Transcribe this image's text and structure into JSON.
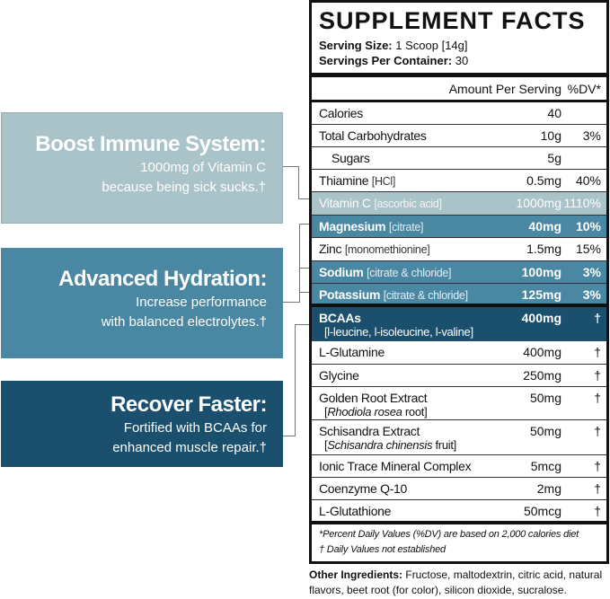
{
  "colors": {
    "light": "#a9c3c8",
    "mid": "#4a87a3",
    "dark": "#1b4f6e"
  },
  "callouts": [
    {
      "title": "Boost Immune System:",
      "line1": "1000mg of Vitamin C",
      "line2": "because being sick sucks.†"
    },
    {
      "title": "Advanced Hydration:",
      "line1": "Increase performance",
      "line2": "with balanced electrolytes.†"
    },
    {
      "title": "Recover Faster:",
      "line1": "Fortified with BCAAs for",
      "line2": "enhanced muscle repair.†"
    }
  ],
  "facts": {
    "title": "SUPPLEMENT FACTS",
    "serving_size_label": "Serving Size:",
    "serving_size": "1 Scoop [14g]",
    "servings_label": "Servings Per Container:",
    "servings": "30",
    "amount_header": "Amount Per Serving",
    "dv_header": "%DV*",
    "rows": [
      {
        "name": "Calories",
        "amount": "40",
        "dv": ""
      },
      {
        "name": "Total Carbohydrates",
        "amount": "10g",
        "dv": "3%"
      },
      {
        "name": "Sugars",
        "amount": "5g",
        "dv": ""
      },
      {
        "name": "Thiamine",
        "form": "[HCl]",
        "amount": "0.5mg",
        "dv": "40%"
      },
      {
        "name": "Vitamin C",
        "form": "[ascorbic acid]",
        "amount": "1000mg",
        "dv": "1110%"
      },
      {
        "name": "Magnesium",
        "form": "[citrate]",
        "amount": "40mg",
        "dv": "10%"
      },
      {
        "name": "Zinc",
        "form": "[monomethionine]",
        "amount": "1.5mg",
        "dv": "15%"
      },
      {
        "name": "Sodium",
        "form": "[citrate & chloride]",
        "amount": "100mg",
        "dv": "3%"
      },
      {
        "name": "Potassium",
        "form": "[citrate & chloride]",
        "amount": "125mg",
        "dv": "3%"
      },
      {
        "name": "BCAAs",
        "sub": "[l-leucine, l-isoleucine, l-valine]",
        "amount": "400mg",
        "dv": "†"
      },
      {
        "name": "L-Glutamine",
        "amount": "400mg",
        "dv": "†"
      },
      {
        "name": "Glycine",
        "amount": "250mg",
        "dv": "†"
      },
      {
        "name": "Golden Root Extract",
        "sub_italic": "Rhodiola rosea",
        "sub_rest": "root]",
        "amount": "50mg",
        "dv": "†"
      },
      {
        "name": "Schisandra Extract",
        "sub_italic": "Schisandra chinensis",
        "sub_rest": "fruit]",
        "amount": "50mg",
        "dv": "†"
      },
      {
        "name": "Ionic Trace Mineral Complex",
        "amount": "5mcg",
        "dv": "†"
      },
      {
        "name": "Coenzyme Q-10",
        "amount": "2mg",
        "dv": "†"
      },
      {
        "name": "L-Glutathione",
        "amount": "50mcg",
        "dv": "†"
      }
    ],
    "footnote1": "*Percent Daily Values (%DV) are based on 2,000 calories diet",
    "footnote2": "† Daily Values not established"
  },
  "other_label": "Other Ingredients:",
  "other_text": "Fructose, maltodextrin, citric acid, natural flavors, beet root (for color), silicon dioxide, sucralose."
}
